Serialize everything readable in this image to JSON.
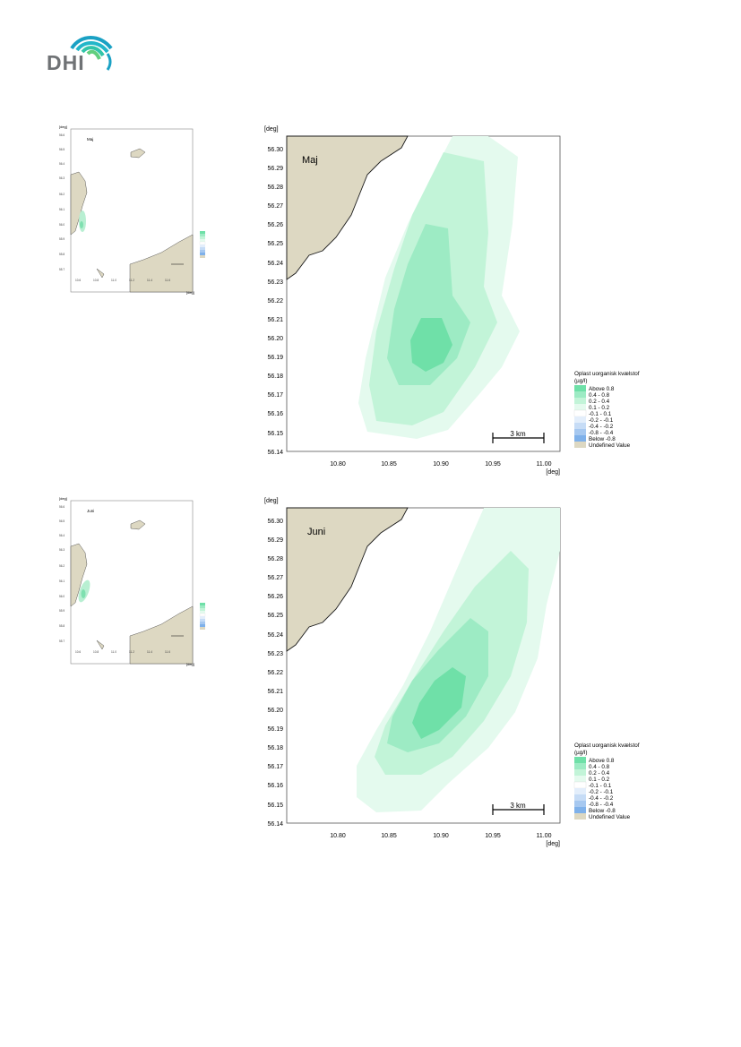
{
  "logo": {
    "text": "DHI"
  },
  "axis": {
    "deg_label": "[deg]",
    "y_ticks": [
      "56.30",
      "56.29",
      "56.28",
      "56.27",
      "56.26",
      "56.25",
      "56.24",
      "56.23",
      "56.22",
      "56.21",
      "56.20",
      "56.19",
      "56.18",
      "56.17",
      "56.16",
      "56.15",
      "56.14"
    ],
    "x_ticks": [
      "10.80",
      "10.85",
      "10.90",
      "10.95",
      "11.00"
    ]
  },
  "scale_bar": {
    "label": "3 km"
  },
  "legend": {
    "title_line1": "Oplast uorganisk kvælstof",
    "title_line2": "(µg/l)",
    "items": [
      {
        "label": "Above  0.8",
        "color": "#6fe0a8"
      },
      {
        "label": "0.4 -  0.8",
        "color": "#9debc4"
      },
      {
        "label": "0.2 -  0.4",
        "color": "#c2f4d8"
      },
      {
        "label": "0.1 -  0.2",
        "color": "#e4faee"
      },
      {
        "label": "-0.1 -  0.1",
        "color": "#ffffff"
      },
      {
        "label": "-0.2 -  -0.1",
        "color": "#e3eefb"
      },
      {
        "label": "-0.4 -  -0.2",
        "color": "#c6dcf6"
      },
      {
        "label": "-0.8 -  -0.4",
        "color": "#a6c8f0"
      },
      {
        "label": "Below -0.8",
        "color": "#7fb1ea"
      },
      {
        "label": "Undefined Value",
        "color": "#ddd8c2"
      }
    ]
  },
  "panels": [
    {
      "month": "Maj",
      "thumb_month": "Maj"
    },
    {
      "month": "Juni",
      "thumb_month": "Juni"
    }
  ],
  "colors": {
    "land": "#ddd8c2",
    "coast": "#1a1a1a"
  }
}
